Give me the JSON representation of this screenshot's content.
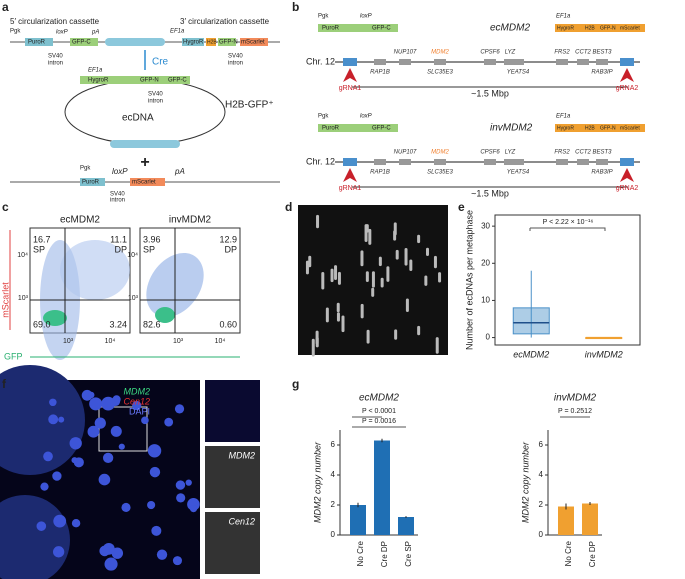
{
  "el": {
    "pgk": "Pgk",
    "t2a": "2A",
    "puror": "PuroR",
    "loxp": "loxP",
    "gfpc": "GFP-C",
    "pa": "pA",
    "sv40": "SV40",
    "intron": "intron",
    "ef1a": "EF1a",
    "hygror": "HygroR",
    "h2b": "H2B",
    "gfpn": "GFP-N",
    "mscarlet": "mScarlet"
  },
  "a": {
    "label": "a",
    "cassette_5": "5′ circularization cassette",
    "cassette_3": "3′ circularization cassette",
    "cre": "Cre",
    "ecdna": "ecDNA",
    "h2b_gfp": "H2B-GFP⁺",
    "plus": "+"
  },
  "b": {
    "label": "b",
    "ec": "ecMDM2",
    "inv": "invMDM2",
    "chr": "Chr. 12",
    "grna1": "gRNA1",
    "grna2": "gRNA2",
    "span": "~1.5 Mbp",
    "genes": [
      "RAP1B",
      "NUP107",
      "MDM2",
      "SLC35E3",
      "CPSF6",
      "LYZ",
      "YEATS4",
      "FRS2",
      "CCT2",
      "BEST3",
      "RAB3IP"
    ]
  },
  "c": {
    "label": "c",
    "sp": "SP",
    "dp": "DP",
    "yaxis": "mScarlet",
    "xaxis": "GFP",
    "ticks": [
      "10³",
      "10⁴"
    ],
    "plots": [
      {
        "title": "ecMDM2",
        "quadrants": [
          "16.7",
          "11.1",
          "69.0",
          "3.24"
        ]
      },
      {
        "title": "invMDM2",
        "quadrants": [
          "3.96",
          "12.9",
          "82.6",
          "0.60"
        ]
      }
    ]
  },
  "d": {
    "label": "d"
  },
  "e": {
    "label": "e",
    "ylabel": "Number of ecDNAs per metaphase",
    "p": "P < 2.22 × 10⁻¹⁶",
    "ylim": [
      -2,
      33
    ],
    "yticks": [
      0,
      10,
      20,
      30
    ],
    "categories": [
      "ecMDM2",
      "invMDM2"
    ],
    "colors": [
      "#4a90c8",
      "#f0a030"
    ],
    "boxes": [
      {
        "low": 0,
        "q1": 1,
        "median": 4,
        "q3": 8,
        "high": 18
      },
      {
        "low": 0,
        "q1": 0,
        "median": 0,
        "q3": 0,
        "high": 0
      }
    ]
  },
  "f": {
    "label": "f",
    "legend": [
      "MDM2",
      "Cen12",
      "DAPI"
    ]
  },
  "g": {
    "label": "g",
    "ylabel": "MDM2 copy number",
    "charts": [
      {
        "type": "bar",
        "title": "ecMDM2",
        "categories": [
          "No Cre",
          "Cre DP",
          "Cre SP"
        ],
        "values": [
          2.0,
          6.3,
          1.2
        ],
        "errors": [
          0.15,
          0.12,
          0.06
        ],
        "color": "#1f6fb4",
        "ylim": [
          0,
          7
        ],
        "yticks": [
          0,
          2,
          4,
          6
        ],
        "pvalues": [
          "P < 0.0001",
          "P = 0.0016"
        ]
      },
      {
        "type": "bar",
        "title": "invMDM2",
        "categories": [
          "No Cre",
          "Cre DP"
        ],
        "values": [
          1.9,
          2.1
        ],
        "errors": [
          0.2,
          0.1
        ],
        "color": "#f0a030",
        "ylim": [
          0,
          7
        ],
        "yticks": [
          0,
          2,
          4,
          6
        ],
        "pvalues": [
          "P = 0.2512"
        ]
      }
    ]
  }
}
